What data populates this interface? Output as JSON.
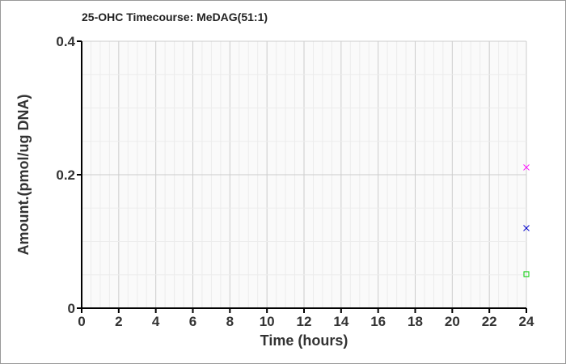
{
  "chart_data": {
    "type": "scatter",
    "title": "25-OHC Timecourse: MeDAG(51:1)",
    "xlabel": "Time (hours)",
    "ylabel": "Amount.(pmol/ug DNA)",
    "xlim": [
      0,
      24
    ],
    "ylim": [
      0,
      0.4
    ],
    "xticks": [
      "0",
      "2",
      "4",
      "6",
      "8",
      "10",
      "12",
      "14",
      "16",
      "18",
      "20",
      "22",
      "24"
    ],
    "yticks": [
      "0",
      "0.2",
      "0.4"
    ],
    "grid": true,
    "series": [
      {
        "marker": "x",
        "color": "#ff00ff",
        "points": [
          [
            24,
            0.211
          ]
        ]
      },
      {
        "marker": "x",
        "color": "#0000cc",
        "points": [
          [
            24,
            0.12
          ]
        ]
      },
      {
        "marker": "square",
        "color": "#00cc00",
        "points": [
          [
            24,
            0.051
          ]
        ]
      }
    ]
  }
}
